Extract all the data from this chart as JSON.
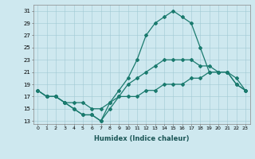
{
  "xlabel": "Humidex (Indice chaleur)",
  "background_color": "#cee8ef",
  "line_color": "#1a7a6e",
  "xlim": [
    -0.5,
    23.5
  ],
  "ylim": [
    12.5,
    32
  ],
  "xticks": [
    0,
    1,
    2,
    3,
    4,
    5,
    6,
    7,
    8,
    9,
    10,
    11,
    12,
    13,
    14,
    15,
    16,
    17,
    18,
    19,
    20,
    21,
    22,
    23
  ],
  "yticks": [
    13,
    15,
    17,
    19,
    21,
    23,
    25,
    27,
    29,
    31
  ],
  "line1_x": [
    0,
    1,
    2,
    3,
    4,
    5,
    6,
    7,
    8,
    9,
    10,
    11,
    12,
    13,
    14,
    15,
    16,
    17,
    18,
    19,
    20,
    21,
    22,
    23
  ],
  "line1_y": [
    18,
    17,
    17,
    16,
    15,
    14,
    14,
    13,
    16,
    18,
    20,
    23,
    27,
    29,
    30,
    31,
    30,
    29,
    25,
    21,
    21,
    21,
    19,
    18
  ],
  "line2_x": [
    0,
    1,
    2,
    3,
    4,
    5,
    6,
    7,
    8,
    9,
    10,
    11,
    12,
    13,
    14,
    15,
    16,
    17,
    18,
    19,
    20,
    21,
    22,
    23
  ],
  "line2_y": [
    18,
    17,
    17,
    16,
    15,
    14,
    14,
    13,
    15,
    17,
    19,
    20,
    21,
    22,
    23,
    23,
    23,
    23,
    22,
    22,
    21,
    21,
    20,
    18
  ],
  "line3_x": [
    0,
    1,
    2,
    3,
    4,
    5,
    6,
    7,
    8,
    9,
    10,
    11,
    12,
    13,
    14,
    15,
    16,
    17,
    18,
    19,
    20,
    21,
    22,
    23
  ],
  "line3_y": [
    18,
    17,
    17,
    16,
    16,
    16,
    15,
    15,
    16,
    17,
    17,
    17,
    18,
    18,
    19,
    19,
    19,
    20,
    20,
    21,
    21,
    21,
    19,
    18
  ]
}
